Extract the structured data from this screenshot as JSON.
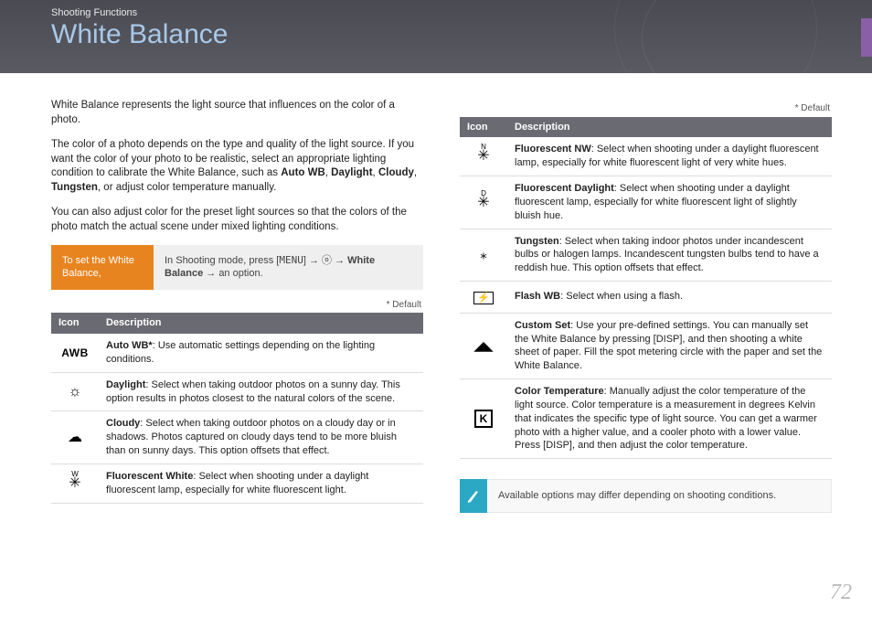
{
  "header": {
    "section": "Shooting Functions",
    "title": "White Balance"
  },
  "intro": {
    "p1": "White Balance represents the light source that influences on the color of a photo.",
    "p2a": "The color of a photo depends on the type and quality of the light source. If you want the color of your photo to be realistic, select an appropriate lighting condition to calibrate the White Balance, such as ",
    "p2_bold": "Auto WB",
    "p2b": ", ",
    "p2_bold2": "Daylight",
    "p2c": ", ",
    "p2_bold3": "Cloudy",
    "p2d": ", ",
    "p2_bold4": "Tungsten",
    "p2e": ", or adjust color temperature manually.",
    "p3": "You can also adjust color for the preset light sources so that the colors of the photo match the actual scene under mixed lighting conditions."
  },
  "instruction": {
    "left": "To set the White Balance,",
    "right_a": "In Shooting mode, press [",
    "right_menu": "MENU",
    "right_b": "] → ⓞ → ",
    "right_bold": "White Balance",
    "right_c": " → an option."
  },
  "default_label": "* Default",
  "table_headers": {
    "icon": "Icon",
    "desc": "Description"
  },
  "left_rows": [
    {
      "icon_html": "<span class='awb'>AWB</span>",
      "title": "Auto WB*",
      "text": ": Use automatic settings depending on the lighting conditions."
    },
    {
      "icon_html": "☼",
      "title": "Daylight",
      "text": ": Select when taking outdoor photos on a sunny day. This option results in photos closest to the natural colors of the scene."
    },
    {
      "icon_html": "☁",
      "title": "Cloudy",
      "text": ": Select when taking outdoor photos on a cloudy day or in shadows. Photos captured on cloudy days tend to be more bluish than on sunny days. This option offsets that effect."
    },
    {
      "icon_html": "<span class='fluor'>✳<span class='fluor-dot'>W</span></span>",
      "title": "Fluorescent White",
      "text": ": Select when shooting under a daylight fluorescent lamp, especially for white fluorescent light."
    }
  ],
  "right_rows": [
    {
      "icon_html": "<span class='fluor'>✳<span class='fluor-dot'>N</span></span>",
      "title": "Fluorescent NW",
      "text": ": Select when shooting under a daylight fluorescent lamp, especially for white fluorescent light of very white hues."
    },
    {
      "icon_html": "<span class='fluor'>✳<span class='fluor-dot'>D</span></span>",
      "title": "Fluorescent Daylight",
      "text": ": Select when shooting under a daylight fluorescent lamp, especially for white fluorescent light of slightly bluish hue."
    },
    {
      "icon_html": "<span style='font-size:15px'>⁎</span>",
      "title": "Tungsten",
      "text": ": Select when taking indoor photos under incandescent bulbs or halogen lamps. Incandescent tungsten bulbs tend to have a reddish hue. This option offsets that effect."
    },
    {
      "icon_html": "<span style='border:1px solid #000;padding:0 3px;font-size:11px'>⚡</span>",
      "title": "Flash WB",
      "text": ": Select when using a flash."
    },
    {
      "icon_html": "<span style='font-size:14px'>◢◣</span>",
      "title": "Custom Set",
      "text": ": Use your pre-defined settings. You can manually set the White Balance by pressing [DISP], and then shooting a white sheet of paper. Fill the spot metering circle with the paper and set the White Balance."
    },
    {
      "icon_html": "<span class='kelvin'>K</span>",
      "title": "Color Temperature",
      "text": ": Manually adjust the color temperature of the light source. Color temperature is a measurement in degrees Kelvin that indicates the specific type of light source. You can get a warmer photo with a higher value, and a cooler photo with a lower value. Press [DISP], and then adjust the color temperature."
    }
  ],
  "note": "Available options may differ depending on shooting conditions.",
  "page_number": "72"
}
